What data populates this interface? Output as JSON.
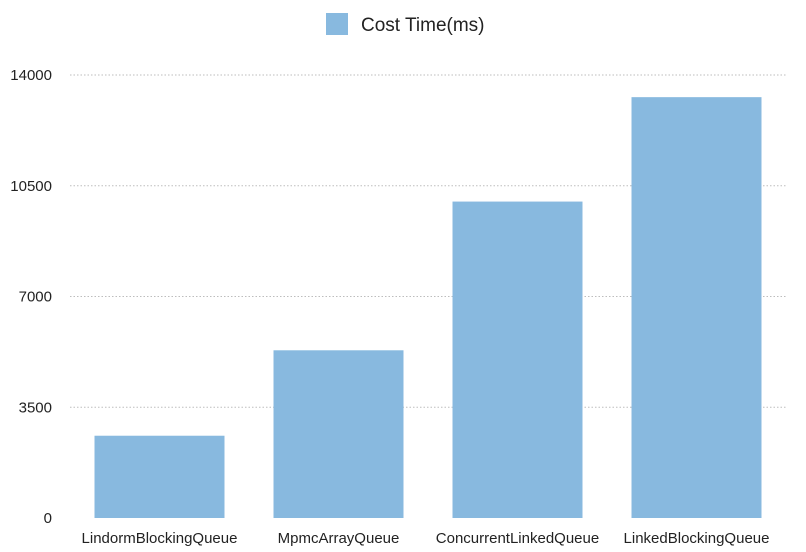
{
  "chart_data": {
    "type": "bar",
    "categories": [
      "LindormBlockingQueue",
      "MpmcArrayQueue",
      "ConcurrentLinkedQueue",
      "LinkedBlockingQueue"
    ],
    "series": [
      {
        "name": "Cost Time(ms)",
        "values": [
          2600,
          5300,
          10000,
          13300
        ],
        "color": "#88b9df"
      }
    ],
    "yticks": [
      0,
      3500,
      7000,
      10500,
      14000
    ],
    "ylim": [
      0,
      14000
    ],
    "grid": true,
    "legend": "top-center"
  }
}
